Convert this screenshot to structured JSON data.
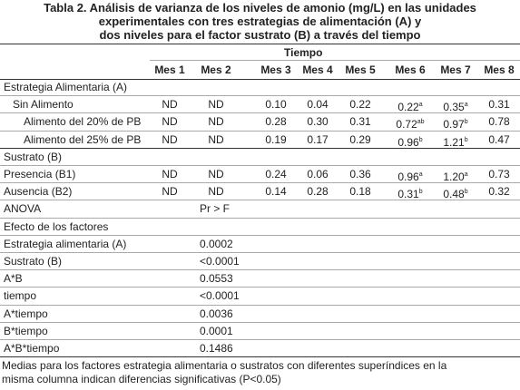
{
  "header": {
    "title": [
      "Tabla 2. Análisis de varianza de los niveles de amonio (mg/L) en las unidades",
      "experimentales con tres estrategias de alimentación (A) y",
      "dos niveles para el factor sustrato (B) a través del tiempo"
    ]
  },
  "table": {
    "spanner": "Tiempo",
    "columns": [
      "Mes 1",
      "Mes 2",
      "Mes 3",
      "Mes 4",
      "Mes 5",
      "Mes 6",
      "Mes 7",
      "Mes 8"
    ],
    "rows": [
      {
        "label": "Estrategia Alimentaria (A)"
      },
      {
        "label": "Sin Alimento",
        "cells": [
          "ND",
          "ND",
          "0.10",
          "0.04",
          "0.22",
          {
            "value": "0.22",
            "sup": "a"
          },
          {
            "value": "0.35",
            "sup": "a"
          },
          "0.31"
        ]
      },
      {
        "label": "Alimento del 20% de PB",
        "cells": [
          "ND",
          "ND",
          "0.28",
          "0.30",
          "0.31",
          {
            "value": "0.72",
            "sup": "ab"
          },
          {
            "value": "0.97",
            "sup": "b"
          },
          "0.78"
        ]
      },
      {
        "label": "Alimento del 25% de PB",
        "cells": [
          "ND",
          "ND",
          "0.19",
          "0.17",
          "0.29",
          {
            "value": "0.96",
            "sup": "b"
          },
          {
            "value": "1.21",
            "sup": "b"
          },
          "0.47"
        ]
      },
      {
        "label": "Sustrato (B)"
      },
      {
        "label": "Presencia (B1)",
        "cells": [
          "ND",
          "ND",
          "0.24",
          "0.06",
          "0.36",
          {
            "value": "0.96",
            "sup": "a"
          },
          {
            "value": "1.20",
            "sup": "a"
          },
          "0.73"
        ]
      },
      {
        "label": "Ausencia (B2)",
        "cells": [
          "ND",
          "ND",
          "0.14",
          "0.28",
          "0.18",
          {
            "value": "0.31",
            "sup": "b"
          },
          {
            "value": "0.48",
            "sup": "b"
          },
          "0.32"
        ]
      }
    ],
    "anova": {
      "label": "ANOVA",
      "column": "Pr > F",
      "heading": "Efecto de los factores",
      "rows": [
        {
          "label": "Estrategia alimentaria (A)",
          "p": "0.0002"
        },
        {
          "label": "Sustrato (B)",
          "p": "<0.0001"
        },
        {
          "label": "A*B",
          "p": "0.0553"
        },
        {
          "label": "tiempo",
          "p": "<0.0001"
        },
        {
          "label": "A*tiempo",
          "p": "0.0036"
        },
        {
          "label": "B*tiempo",
          "p": "0.0001"
        },
        {
          "label": "A*B*tiempo",
          "p": "0.1486"
        }
      ]
    }
  },
  "footnote": [
    "Medias para los factores estrategia alimentaria o sustratos con diferentes superíndices en la",
    "misma columna indican diferencias significativas (P<0.05)"
  ]
}
